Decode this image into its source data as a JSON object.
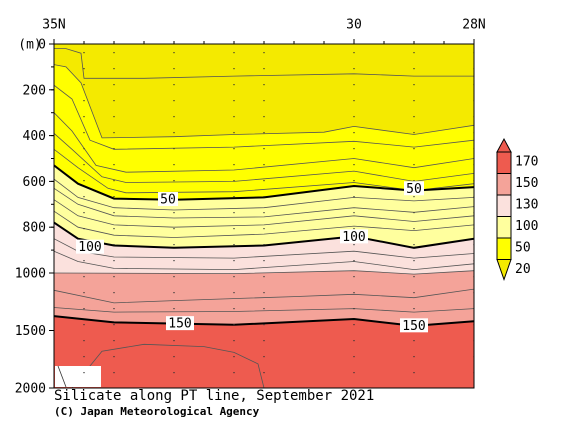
{
  "chart_data": {
    "type": "contour",
    "title": "Silicate along PT line, September 2021",
    "credit": "(C) Japan Meteorological Agency",
    "y_unit_label": "(m)",
    "x_range_deg_n": [
      35,
      28
    ],
    "x_ticks": [
      {
        "lat": 35,
        "label": "35N"
      },
      {
        "lat": 30,
        "label": "30"
      },
      {
        "lat": 28,
        "label": "28N"
      }
    ],
    "y_range_m": [
      0,
      2000
    ],
    "y_ticks": [
      {
        "depth": 0,
        "label": "0"
      },
      {
        "depth": 200,
        "label": "200"
      },
      {
        "depth": 400,
        "label": "400"
      },
      {
        "depth": 600,
        "label": "600"
      },
      {
        "depth": 800,
        "label": "800"
      },
      {
        "depth": 1000,
        "label": "1000"
      },
      {
        "depth": 1500,
        "label": "1500"
      },
      {
        "depth": 2000,
        "label": "2000"
      }
    ],
    "y_axis_note": "depth axis changes scale at 1000 m (0-1000 m expanded)",
    "station_latitudes": [
      34.5,
      34,
      33,
      32,
      31.5,
      30,
      29,
      28
    ],
    "color_scale": {
      "ticks": [
        "170",
        "150",
        "130",
        "100",
        "50",
        "20"
      ],
      "bands": [
        {
          "from": 0,
          "to": 20,
          "color": "#f4ea00"
        },
        {
          "from": 20,
          "to": 50,
          "color": "#ffff00"
        },
        {
          "from": 50,
          "to": 100,
          "color": "#ffff9e"
        },
        {
          "from": 100,
          "to": 130,
          "color": "#fbe1dd"
        },
        {
          "from": 130,
          "to": 150,
          "color": "#f4a399"
        },
        {
          "from": 150,
          "to": 170,
          "color": "#ee5b4f"
        }
      ]
    },
    "contours": [
      {
        "value": 10,
        "points": [
          [
            35,
            20
          ],
          [
            34.8,
            20
          ],
          [
            34.55,
            40
          ],
          [
            34.5,
            150
          ],
          [
            33.5,
            150
          ],
          [
            32,
            140
          ],
          [
            30,
            130
          ],
          [
            29,
            140
          ],
          [
            28,
            140
          ]
        ]
      },
      {
        "value": 20,
        "points": [
          [
            35,
            90
          ],
          [
            34.8,
            100
          ],
          [
            34.55,
            170
          ],
          [
            34.2,
            410
          ],
          [
            33,
            405
          ],
          [
            32,
            395
          ],
          [
            30.5,
            385
          ],
          [
            30,
            360
          ],
          [
            29,
            395
          ],
          [
            28,
            355
          ]
        ]
      },
      {
        "value": 25,
        "points": [
          [
            35,
            180
          ],
          [
            34.7,
            240
          ],
          [
            34.4,
            420
          ],
          [
            34,
            460
          ],
          [
            32,
            450
          ],
          [
            30,
            425
          ],
          [
            29,
            450
          ],
          [
            28,
            420
          ]
        ]
      },
      {
        "value": 30,
        "points": [
          [
            35,
            300
          ],
          [
            34.7,
            380
          ],
          [
            34.3,
            530
          ],
          [
            33.8,
            560
          ],
          [
            32,
            550
          ],
          [
            30,
            500
          ],
          [
            29,
            540
          ],
          [
            28,
            500
          ]
        ]
      },
      {
        "value": 35,
        "points": [
          [
            35,
            390
          ],
          [
            34.7,
            460
          ],
          [
            34.2,
            580
          ],
          [
            33.8,
            605
          ],
          [
            32,
            600
          ],
          [
            30,
            555
          ],
          [
            29,
            600
          ],
          [
            28,
            565
          ]
        ]
      },
      {
        "value": 40,
        "points": [
          [
            35,
            460
          ],
          [
            34.6,
            540
          ],
          [
            34.1,
            630
          ],
          [
            33.8,
            650
          ],
          [
            32,
            645
          ],
          [
            30,
            605
          ],
          [
            29,
            640
          ],
          [
            28,
            610
          ]
        ]
      },
      {
        "value": 50,
        "bold": true,
        "label_at": [
          [
            33.1,
            677
          ],
          [
            29,
            630
          ]
        ],
        "points": [
          [
            35,
            530
          ],
          [
            34.6,
            610
          ],
          [
            34,
            675
          ],
          [
            33,
            680
          ],
          [
            31.5,
            670
          ],
          [
            30,
            620
          ],
          [
            29,
            640
          ],
          [
            28,
            625
          ]
        ]
      },
      {
        "value": 60,
        "points": [
          [
            35,
            590
          ],
          [
            34.6,
            670
          ],
          [
            34,
            715
          ],
          [
            33,
            725
          ],
          [
            31.5,
            715
          ],
          [
            30,
            670
          ],
          [
            29,
            685
          ],
          [
            28,
            670
          ]
        ]
      },
      {
        "value": 70,
        "points": [
          [
            35,
            630
          ],
          [
            34.6,
            700
          ],
          [
            34,
            750
          ],
          [
            33,
            760
          ],
          [
            31.5,
            755
          ],
          [
            30,
            715
          ],
          [
            29,
            735
          ],
          [
            28,
            710
          ]
        ]
      },
      {
        "value": 80,
        "points": [
          [
            35,
            680
          ],
          [
            34.6,
            750
          ],
          [
            34,
            790
          ],
          [
            33,
            800
          ],
          [
            31.5,
            790
          ],
          [
            30,
            750
          ],
          [
            29,
            775
          ],
          [
            28,
            750
          ]
        ]
      },
      {
        "value": 90,
        "points": [
          [
            35,
            730
          ],
          [
            34.6,
            800
          ],
          [
            34,
            835
          ],
          [
            33,
            845
          ],
          [
            31.5,
            830
          ],
          [
            30,
            795
          ],
          [
            29,
            815
          ],
          [
            28,
            790
          ]
        ]
      },
      {
        "value": 100,
        "bold": true,
        "label_at": [
          [
            34.4,
            885
          ],
          [
            30,
            840
          ]
        ],
        "points": [
          [
            35,
            780
          ],
          [
            34.6,
            850
          ],
          [
            34,
            880
          ],
          [
            33,
            890
          ],
          [
            31.5,
            880
          ],
          [
            30,
            840
          ],
          [
            29,
            890
          ],
          [
            28,
            850
          ]
        ]
      },
      {
        "value": 110,
        "points": [
          [
            35,
            850
          ],
          [
            34.6,
            905
          ],
          [
            34,
            930
          ],
          [
            32,
            935
          ],
          [
            30,
            905
          ],
          [
            29,
            935
          ],
          [
            28,
            915
          ]
        ]
      },
      {
        "value": 120,
        "points": [
          [
            35,
            905
          ],
          [
            34.6,
            950
          ],
          [
            34,
            980
          ],
          [
            32,
            985
          ],
          [
            30,
            950
          ],
          [
            29,
            985
          ],
          [
            28,
            960
          ]
        ]
      },
      {
        "value": 130,
        "points": [
          [
            35,
            1000
          ],
          [
            32,
            1005
          ],
          [
            30,
            990
          ],
          [
            29,
            1010
          ],
          [
            28,
            990
          ]
        ]
      },
      {
        "value": 140,
        "points": [
          [
            35,
            1150
          ],
          [
            34,
            1260
          ],
          [
            33,
            1240
          ],
          [
            31,
            1205
          ],
          [
            30,
            1185
          ],
          [
            29,
            1215
          ],
          [
            28,
            1140
          ]
        ]
      },
      {
        "value": 145,
        "points": [
          [
            35,
            1300
          ],
          [
            34,
            1340
          ],
          [
            32,
            1335
          ],
          [
            30,
            1310
          ],
          [
            29,
            1340
          ],
          [
            28,
            1310
          ]
        ]
      },
      {
        "value": 150,
        "bold": true,
        "label_at": [
          [
            32.9,
            1436
          ],
          [
            29,
            1455
          ]
        ],
        "points": [
          [
            35,
            1375
          ],
          [
            34,
            1430
          ],
          [
            32,
            1450
          ],
          [
            30,
            1400
          ],
          [
            29,
            1460
          ],
          [
            28,
            1420
          ]
        ]
      },
      {
        "value": 155,
        "points": [
          [
            34.7,
            2000
          ],
          [
            34.2,
            1680
          ],
          [
            33.5,
            1620
          ],
          [
            32.5,
            1640
          ],
          [
            32,
            1690
          ],
          [
            31.6,
            1790
          ],
          [
            31.5,
            2000
          ]
        ]
      }
    ],
    "bottom_mask_note": "white area near 35N below 1900 m (no data)"
  }
}
